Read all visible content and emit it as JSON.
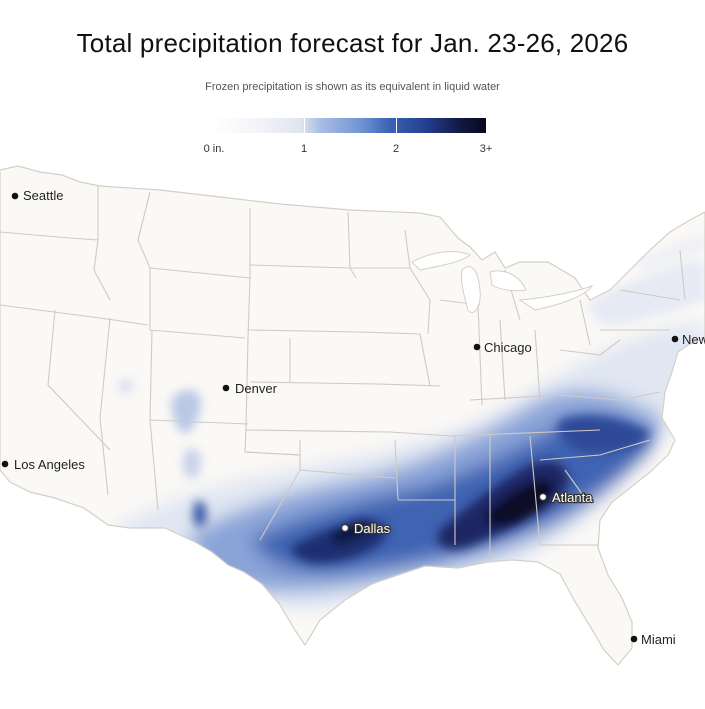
{
  "title": "Total precipitation forecast for Jan. 23-26, 2026",
  "subtitle": "Frozen precipitation is shown as its equivalent in liquid water",
  "legend": {
    "labels": [
      "0 in.",
      "1",
      "2",
      "3+"
    ],
    "colors": [
      "#ffffff",
      "#dfe4f0",
      "#3a63b5",
      "#07081e"
    ]
  },
  "cities": {
    "seattle": "Seattle",
    "denver": "Denver",
    "chicago": "Chicago",
    "new_york": "New",
    "los_angeles": "Los Angeles",
    "dallas": "Dallas",
    "atlanta": "Atlanta",
    "miami": "Miami"
  },
  "colors": {
    "land": "#fbf9f6",
    "state_border": "#cfcac3",
    "light_blue": "#c6d3ec",
    "mid_blue": "#5f82c9",
    "dark_blue": "#23367e",
    "darkest": "#0b0f2e"
  }
}
